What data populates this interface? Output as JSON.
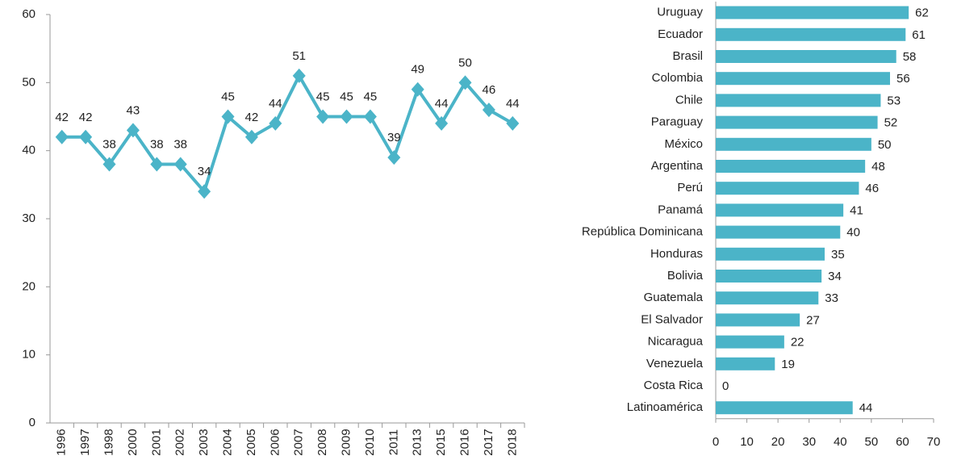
{
  "chart_data": [
    {
      "type": "line",
      "color": "#4bb4c8",
      "categories": [
        "1996",
        "1997",
        "1998",
        "2000",
        "2001",
        "2002",
        "2003",
        "2004",
        "2005",
        "2006",
        "2007",
        "2008",
        "2009",
        "2010",
        "2011",
        "2013",
        "2015",
        "2016",
        "2017",
        "2018"
      ],
      "values": [
        42,
        42,
        38,
        43,
        38,
        38,
        34,
        45,
        42,
        44,
        51,
        45,
        45,
        45,
        39,
        49,
        44,
        50,
        46,
        44
      ],
      "ylim": [
        0,
        60
      ],
      "yticks": [
        0,
        10,
        20,
        30,
        40,
        50,
        60
      ]
    },
    {
      "type": "hbar",
      "color": "#4bb4c8",
      "categories": [
        "Uruguay",
        "Ecuador",
        "Brasil",
        "Colombia",
        "Chile",
        "Paraguay",
        "México",
        "Argentina",
        "Perú",
        "Panamá",
        "República Dominicana",
        "Honduras",
        "Bolivia",
        "Guatemala",
        "El Salvador",
        "Nicaragua",
        "Venezuela",
        "Costa Rica",
        "Latinoamérica"
      ],
      "values": [
        62,
        61,
        58,
        56,
        53,
        52,
        50,
        48,
        46,
        41,
        40,
        35,
        34,
        33,
        27,
        22,
        19,
        0,
        44
      ],
      "xlim": [
        0,
        70
      ],
      "xticks": [
        0,
        10,
        20,
        30,
        40,
        50,
        60,
        70
      ]
    }
  ]
}
